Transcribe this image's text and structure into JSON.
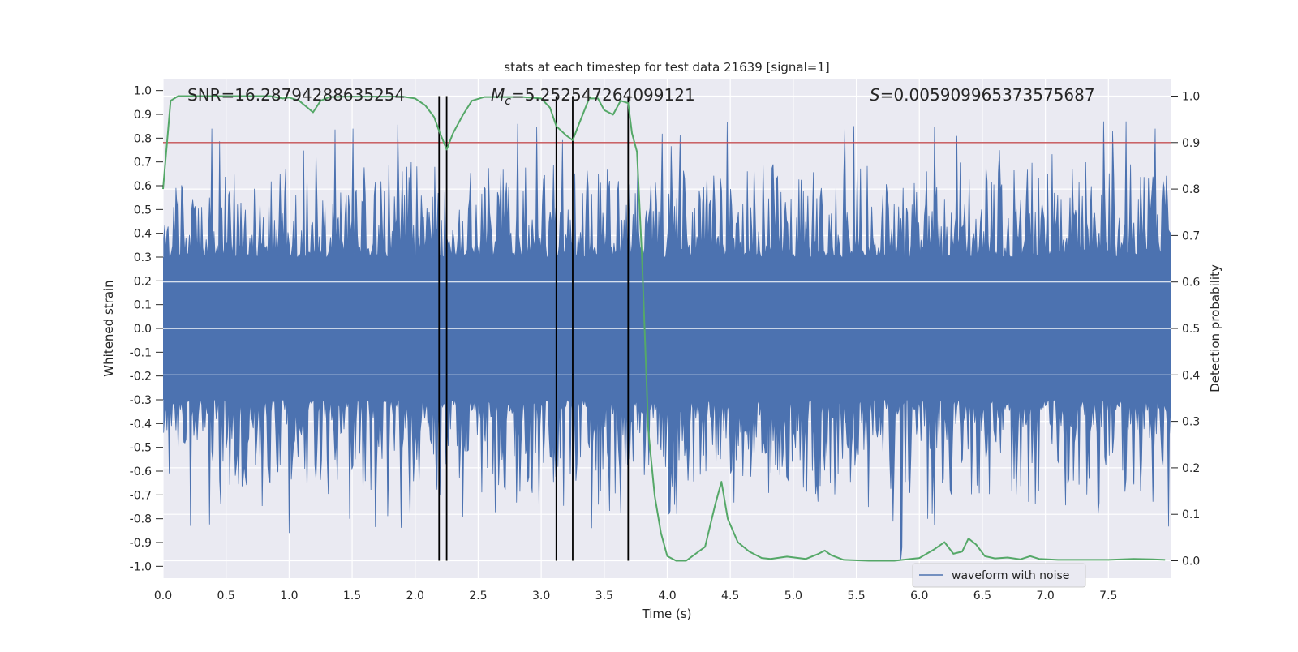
{
  "chart_data": {
    "type": "line",
    "title": "stats at each timestep for test data 21639 [signal=1]",
    "xlabel": "Time (s)",
    "ylabel": "Whitened strain",
    "y2label": "Detection probability",
    "xlim": [
      0.0,
      8.0
    ],
    "ylim": [
      -1.05,
      1.05
    ],
    "y2lim": [
      -0.0375,
      1.0375
    ],
    "xticks": [
      "0.0",
      "0.5",
      "1.0",
      "1.5",
      "2.0",
      "2.5",
      "3.0",
      "3.5",
      "4.0",
      "4.5",
      "5.0",
      "5.5",
      "6.0",
      "6.5",
      "7.0",
      "7.5"
    ],
    "yticks": [
      "1.0",
      "0.9",
      "0.8",
      "0.7",
      "0.6",
      "0.5",
      "0.4",
      "0.3",
      "0.2",
      "0.1",
      "0.0",
      "-0.1",
      "-0.2",
      "-0.3",
      "-0.4",
      "-0.5",
      "-0.6",
      "-0.7",
      "-0.8",
      "-0.9",
      "-1.0"
    ],
    "y2ticks": [
      "1.0",
      "0.9",
      "0.8",
      "0.7",
      "0.6",
      "0.5",
      "0.4",
      "0.3",
      "0.2",
      "0.1",
      "0.0"
    ],
    "annotations": {
      "snr": "SNR=16.28794288635254",
      "mc_symbol": "M",
      "mc_sub": "c",
      "mc_value": "=5.252547264099121",
      "s_symbol": "S",
      "s_value": "=0.005909965373575687"
    },
    "legend": {
      "label": "waveform with noise",
      "location": "lower center"
    },
    "threshold": {
      "y2": 0.9,
      "color": "#c44e52"
    },
    "vertical_lines": [
      2.19,
      2.25,
      3.12,
      3.25,
      3.69
    ],
    "waveform": {
      "name": "waveform with noise",
      "color": "#4c72b0",
      "core_amplitude": 0.3,
      "peak_max": 0.87,
      "peak_min": -0.97
    },
    "probability_series": {
      "name": "detection probability",
      "color": "#55a868",
      "x": [
        0.0,
        0.06,
        0.12,
        0.25,
        0.5,
        0.75,
        0.85,
        0.95,
        1.0,
        1.08,
        1.19,
        1.25,
        1.32,
        1.45,
        1.6,
        1.75,
        1.9,
        2.0,
        2.08,
        2.15,
        2.19,
        2.25,
        2.3,
        2.38,
        2.45,
        2.55,
        2.7,
        2.85,
        3.0,
        3.07,
        3.12,
        3.2,
        3.25,
        3.3,
        3.38,
        3.45,
        3.5,
        3.57,
        3.63,
        3.69,
        3.72,
        3.76,
        3.8,
        3.85,
        3.9,
        3.95,
        4.0,
        4.07,
        4.15,
        4.3,
        4.38,
        4.43,
        4.48,
        4.56,
        4.65,
        4.75,
        4.82,
        4.95,
        5.1,
        5.2,
        5.25,
        5.3,
        5.4,
        5.6,
        5.8,
        6.0,
        6.12,
        6.2,
        6.27,
        6.34,
        6.39,
        6.45,
        6.52,
        6.6,
        6.7,
        6.8,
        6.88,
        6.95,
        7.1,
        7.5,
        7.7,
        7.85,
        7.95
      ],
      "values": [
        0.8,
        0.99,
        1.0,
        1.0,
        1.0,
        1.0,
        1.0,
        0.995,
        0.997,
        0.99,
        0.965,
        0.99,
        0.998,
        0.999,
        0.999,
        0.999,
        0.999,
        0.995,
        0.98,
        0.955,
        0.925,
        0.885,
        0.92,
        0.96,
        0.99,
        0.998,
        0.998,
        0.998,
        0.995,
        0.975,
        0.935,
        0.915,
        0.905,
        0.94,
        0.995,
        0.995,
        0.97,
        0.96,
        0.99,
        0.985,
        0.92,
        0.88,
        0.65,
        0.28,
        0.14,
        0.06,
        0.01,
        0.0,
        0.0,
        0.03,
        0.12,
        0.17,
        0.09,
        0.04,
        0.02,
        0.006,
        0.004,
        0.009,
        0.004,
        0.015,
        0.022,
        0.012,
        0.002,
        0.0,
        0.0,
        0.006,
        0.025,
        0.04,
        0.015,
        0.02,
        0.048,
        0.035,
        0.01,
        0.005,
        0.007,
        0.003,
        0.01,
        0.004,
        0.002,
        0.002,
        0.004,
        0.003,
        0.002
      ]
    }
  }
}
